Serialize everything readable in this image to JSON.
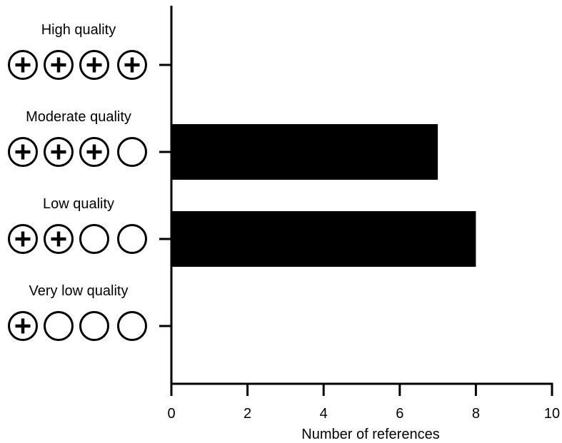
{
  "chart_data": {
    "type": "bar",
    "orientation": "horizontal",
    "categories": [
      "High quality",
      "Moderate quality",
      "Low quality",
      "Very low quality"
    ],
    "ratings": [
      4,
      3,
      2,
      1
    ],
    "rating_max": 4,
    "values": [
      0,
      7,
      8,
      0
    ],
    "xlabel": "Number of references",
    "xlim": [
      0,
      10
    ],
    "xticks": [
      "0",
      "2",
      "4",
      "6",
      "8",
      "10"
    ],
    "grid": false,
    "legend": "none",
    "bar_color": "#000000"
  }
}
